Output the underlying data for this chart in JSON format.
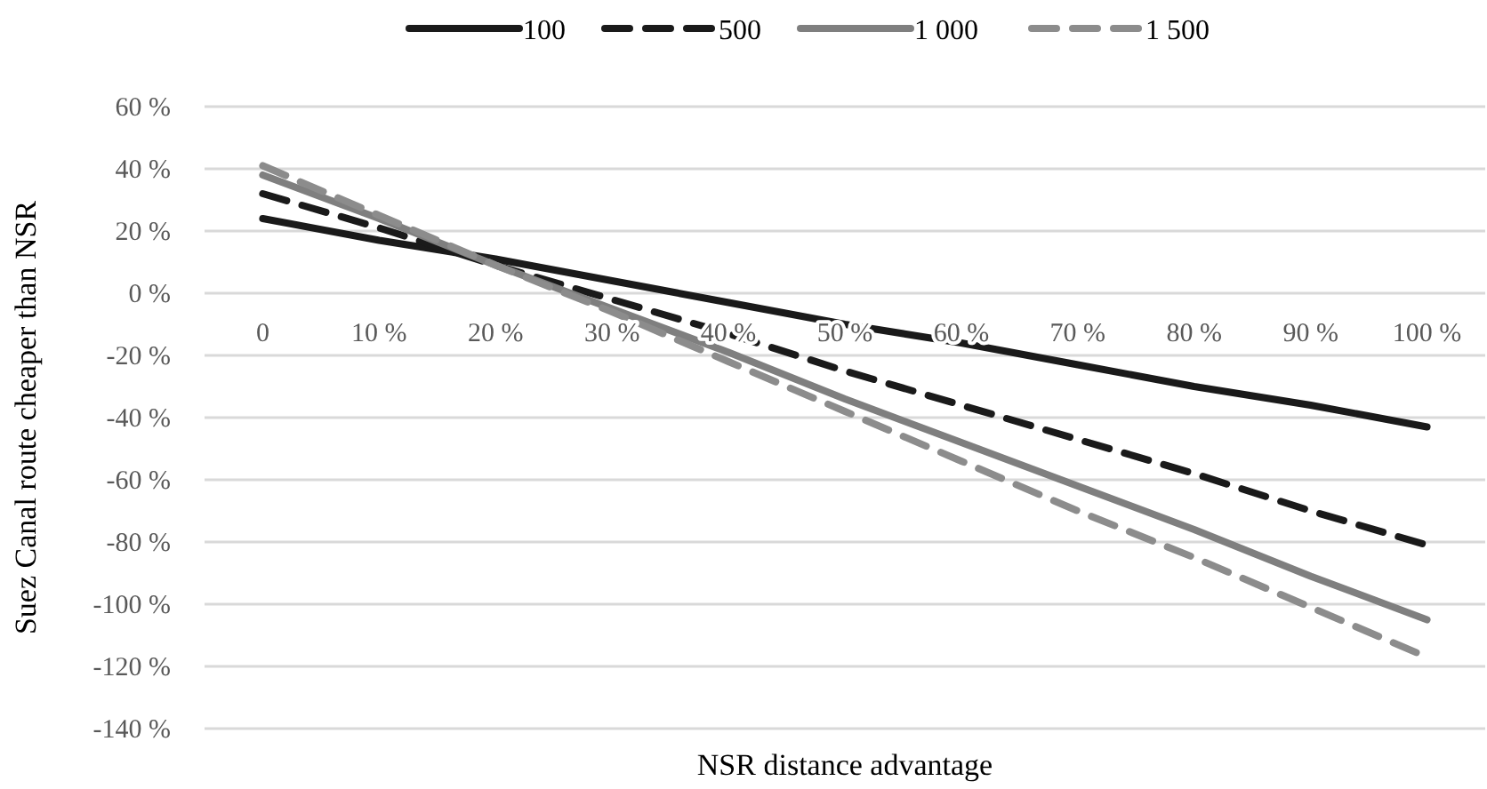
{
  "chart_data": {
    "type": "line",
    "xlabel": "NSR distance advantage",
    "ylabel": "Suez Canal route  cheaper than NSR",
    "categories": [
      "0",
      "10 %",
      "20 %",
      "30 %",
      "40 %",
      "50 %",
      "60 %",
      "70 %",
      "80 %",
      "90 %",
      "100 %"
    ],
    "series": [
      {
        "name": "100",
        "color": "#1a1a1a",
        "line_style": "solid",
        "values": [
          24,
          17,
          11,
          4,
          -3,
          -10,
          -16,
          -23,
          -30,
          -36,
          -43
        ]
      },
      {
        "name": "500",
        "color": "#1a1a1a",
        "line_style": "dashed",
        "values": [
          32,
          21,
          9,
          -2,
          -13,
          -25,
          -36,
          -47,
          -58,
          -70,
          -81
        ]
      },
      {
        "name": "1 000",
        "color": "#7f7f7f",
        "line_style": "solid",
        "values": [
          38,
          24,
          9,
          -5,
          -19,
          -34,
          -48,
          -62,
          -76,
          -91,
          -105
        ]
      },
      {
        "name": "1 500",
        "color": "#8c8c8c",
        "line_style": "dashed",
        "values": [
          41,
          25,
          9,
          -6,
          -22,
          -38,
          -54,
          -70,
          -85,
          -101,
          -117
        ]
      }
    ],
    "ylim": [
      -140,
      60
    ],
    "yticks": [
      {
        "value": 60,
        "label": "60 %"
      },
      {
        "value": 40,
        "label": "40 %"
      },
      {
        "value": 20,
        "label": "20 %"
      },
      {
        "value": 0,
        "label": "0 %"
      },
      {
        "value": -20,
        "label": "-20 %"
      },
      {
        "value": -40,
        "label": "-40 %"
      },
      {
        "value": -60,
        "label": "-60 %"
      },
      {
        "value": -80,
        "label": "-80 %"
      },
      {
        "value": -100,
        "label": "-100 %"
      },
      {
        "value": -120,
        "label": "-120 %"
      },
      {
        "value": -140,
        "label": "-140 %"
      }
    ],
    "grid": "y",
    "legend": "top",
    "marker": "none"
  }
}
